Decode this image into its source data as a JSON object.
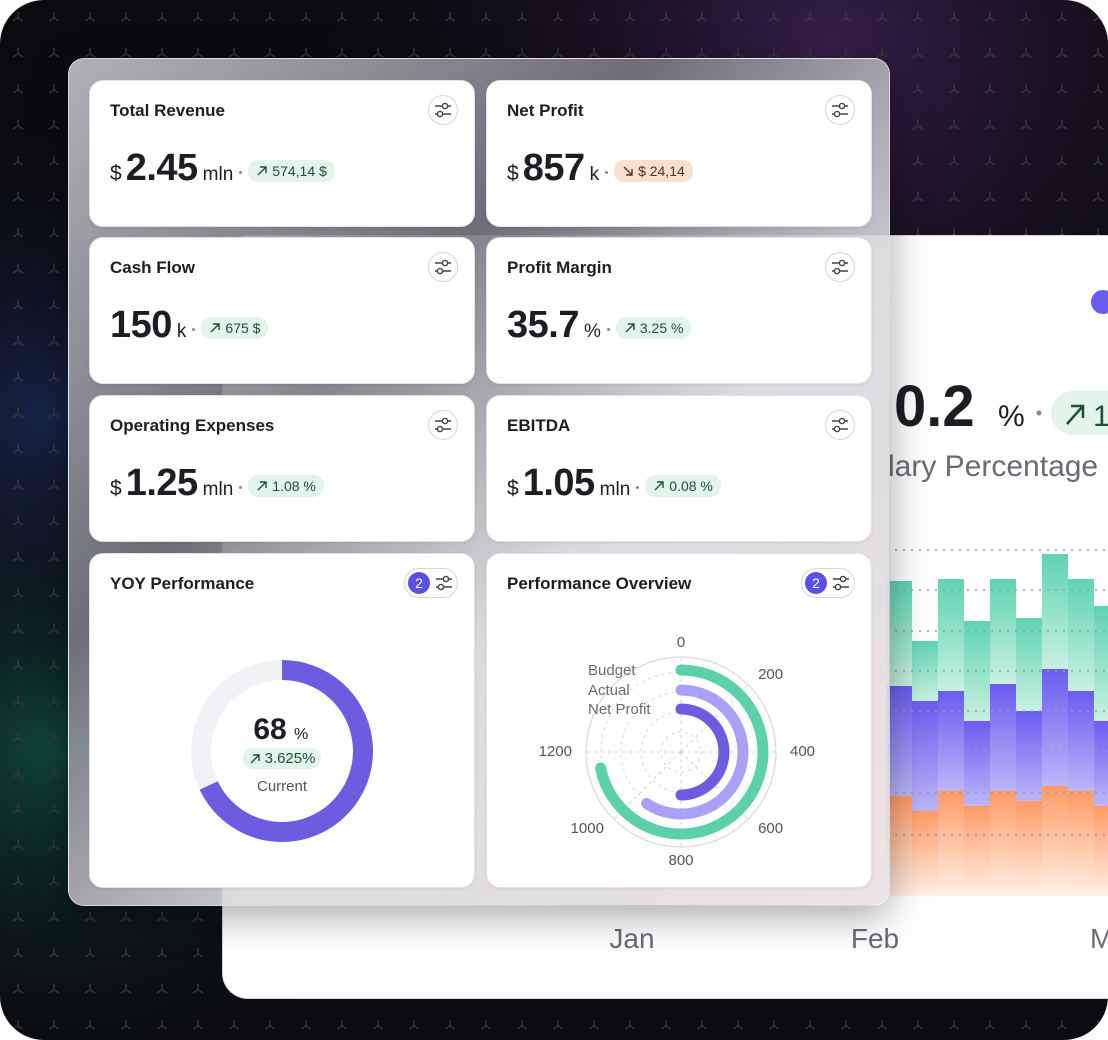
{
  "background_panel": {
    "value": "0.2",
    "unit": "%",
    "badge": "1",
    "subtitle": "lary Percentage",
    "months": [
      "Jan",
      "Feb",
      "M"
    ]
  },
  "cards": [
    {
      "title": "Total Revenue",
      "prefix": "$",
      "value": 2.45,
      "unit": "mln",
      "change": "574,14 $",
      "trend": "up"
    },
    {
      "title": "Net Profit",
      "prefix": "$",
      "value": 857,
      "unit": "k",
      "change": "$ 24,14",
      "trend": "down"
    },
    {
      "title": "Cash Flow",
      "value": 150,
      "unit": "k",
      "change": "675 $",
      "trend": "up"
    },
    {
      "title": "Profit Margin",
      "value": 35.7,
      "unit": "%",
      "change": "3.25 %",
      "trend": "up"
    },
    {
      "title": "Operating Expenses",
      "prefix": "$",
      "value": 1.25,
      "unit": "mln",
      "change": "1.08 %",
      "trend": "up"
    },
    {
      "title": "EBITDA",
      "prefix": "$",
      "value": 1.05,
      "unit": "mln",
      "change": "0.08 %",
      "trend": "up"
    }
  ],
  "yoy": {
    "title": "YOY Performance",
    "filter_count": 2,
    "chart_data": {
      "type": "donut",
      "value": 68,
      "unit": "%",
      "ylim": [
        0,
        100
      ],
      "change": "3.625%",
      "trend": "up",
      "label": "Current",
      "color": "#6b5ce0"
    }
  },
  "overview": {
    "title": "Performance Overview",
    "filter_count": 2,
    "chart_data": {
      "type": "radial-bar",
      "ylim": [
        0,
        1200
      ],
      "yticks": [
        0,
        200,
        400,
        600,
        800,
        1000,
        1200
      ],
      "series": [
        {
          "name": "Budget",
          "color": "#5ccfab",
          "values": [
            1150
          ]
        },
        {
          "name": "Actual",
          "color": "#a9a1f5",
          "values": [
            950
          ]
        },
        {
          "name": "Net Profit",
          "color": "#6b5ce0",
          "values": [
            800
          ]
        }
      ]
    }
  }
}
